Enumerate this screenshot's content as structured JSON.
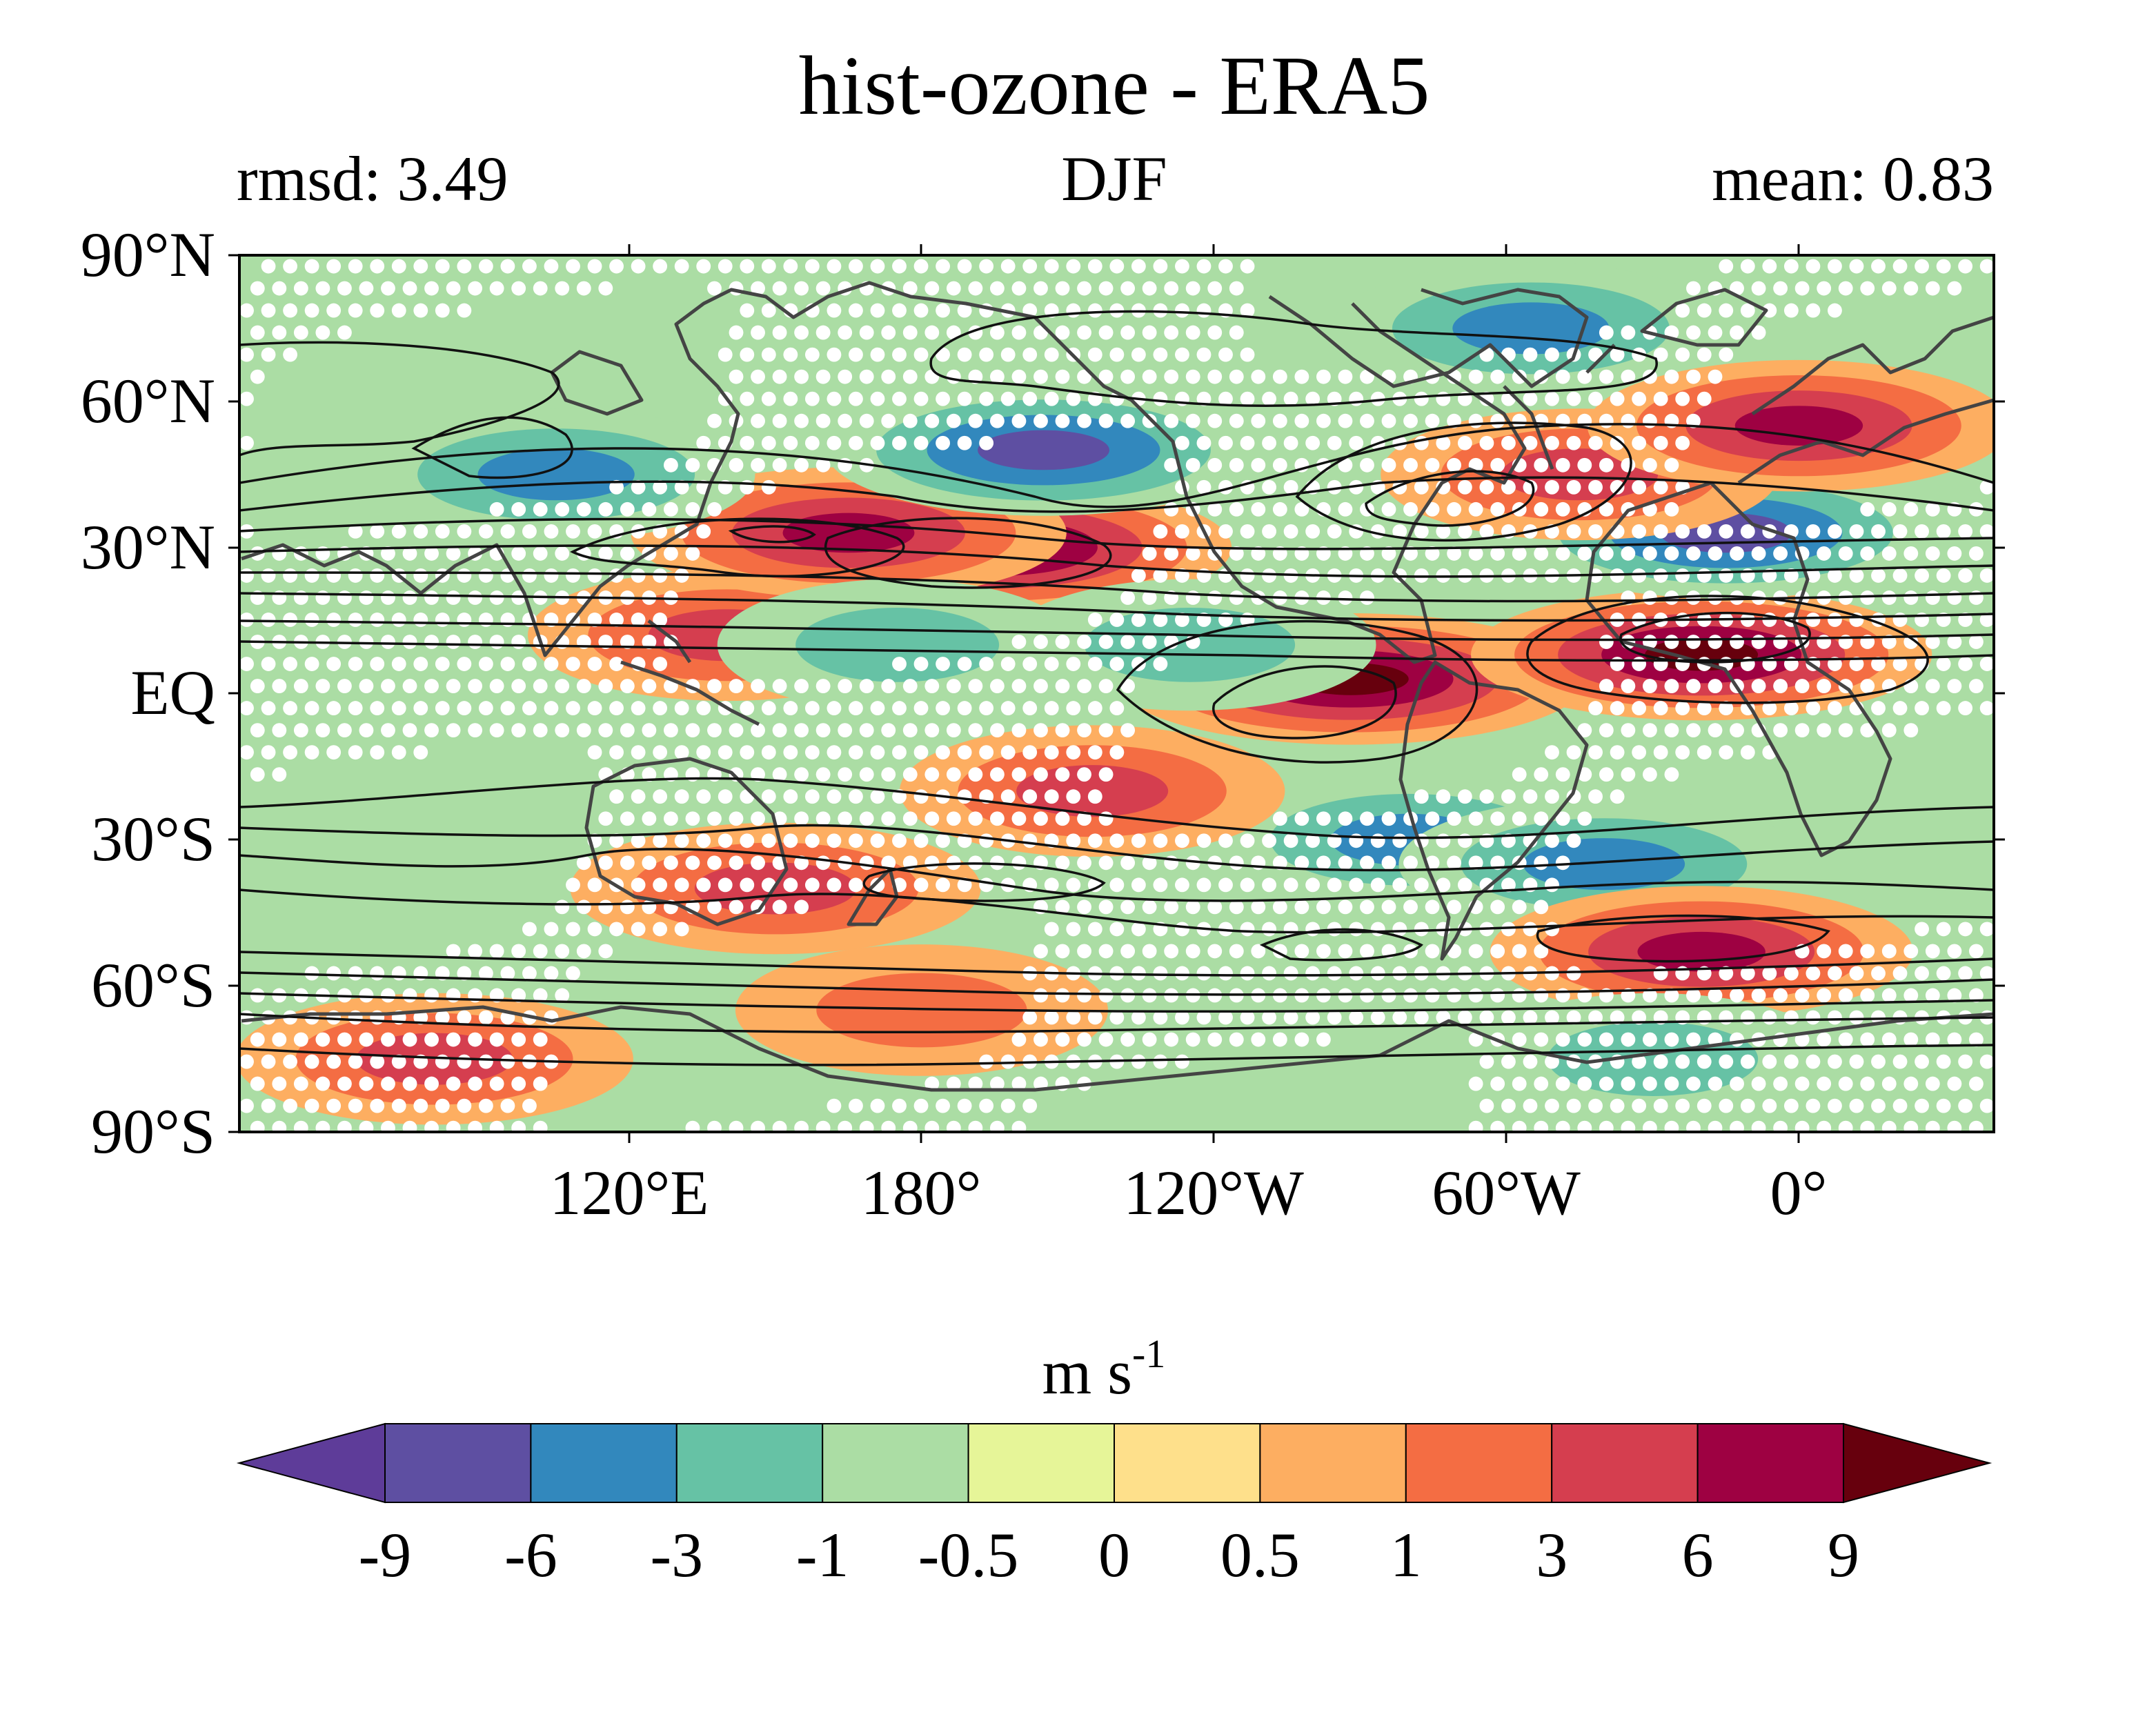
{
  "title": "hist-ozone - ERA5",
  "subtitle_left": "rmsd: 3.49",
  "subtitle_center": "DJF",
  "subtitle_right": "mean: 0.83",
  "lat_ticks": [
    "90°N",
    "60°N",
    "30°N",
    "EQ",
    "30°S",
    "60°S",
    "90°S"
  ],
  "lon_ticks": [
    "120°E",
    "180°",
    "120°W",
    "60°W",
    "0°"
  ],
  "colorbar": {
    "unit_base": "m s",
    "unit_exp": "-1",
    "tick_labels": [
      "-9",
      "-6",
      "-3",
      "-1",
      "-0.5",
      "0",
      "0.5",
      "1",
      "3",
      "6",
      "9"
    ],
    "colors": [
      "#5e3c99",
      "#5e4fa2",
      "#3288bd",
      "#66c2a5",
      "#abdda4",
      "#e6f598",
      "#fee08b",
      "#fdae61",
      "#f46d43",
      "#d53e4f",
      "#9e0142",
      "#67000d"
    ]
  },
  "chart_data": {
    "type": "heatmap",
    "title": "hist-ozone - ERA5",
    "lat_range": [
      -90,
      90
    ],
    "lon_range": [
      40,
      400
    ],
    "field_blobs": [
      {
        "lon": 140,
        "lat": 12,
        "value": 4
      },
      {
        "lon": 195,
        "lat": 30,
        "value": 10
      },
      {
        "lon": 165,
        "lat": 33,
        "value": 7
      },
      {
        "lon": 268,
        "lat": 3,
        "value": 10
      },
      {
        "lon": 340,
        "lat": 8,
        "value": 9
      },
      {
        "lon": 205,
        "lat": 50,
        "value": -7
      },
      {
        "lon": 105,
        "lat": 45,
        "value": -4
      },
      {
        "lon": 345,
        "lat": 33,
        "value": -7
      },
      {
        "lon": 305,
        "lat": 75,
        "value": -4
      },
      {
        "lon": 315,
        "lat": 45,
        "value": 4
      },
      {
        "lon": 360,
        "lat": 55,
        "value": 6
      },
      {
        "lon": 280,
        "lat": -30,
        "value": -4
      },
      {
        "lon": 320,
        "lat": -35,
        "value": -5
      },
      {
        "lon": 150,
        "lat": -40,
        "value": 5
      },
      {
        "lon": 340,
        "lat": -53,
        "value": 6
      },
      {
        "lon": 80,
        "lat": -75,
        "value": 4
      },
      {
        "lon": 215,
        "lat": -20,
        "value": 3
      },
      {
        "lon": 175,
        "lat": 10,
        "value": -1
      },
      {
        "lon": 235,
        "lat": 10,
        "value": -2
      },
      {
        "lon": 180,
        "lat": -65,
        "value": 2
      },
      {
        "lon": 330,
        "lat": -75,
        "value": -2
      }
    ],
    "value_levels": [
      -9,
      -6,
      -3,
      -1,
      -0.5,
      0,
      0.5,
      1,
      3,
      6,
      9
    ],
    "colorbar_extend": "both"
  }
}
